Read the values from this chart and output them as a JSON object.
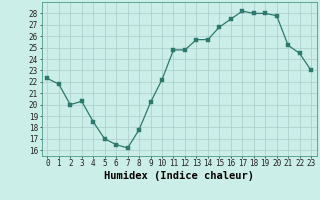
{
  "x": [
    0,
    1,
    2,
    3,
    4,
    5,
    6,
    7,
    8,
    9,
    10,
    11,
    12,
    13,
    14,
    15,
    16,
    17,
    18,
    19,
    20,
    21,
    22,
    23
  ],
  "y": [
    22.3,
    21.8,
    20.0,
    20.3,
    18.5,
    17.0,
    16.5,
    16.2,
    17.8,
    20.2,
    22.2,
    24.8,
    24.8,
    25.7,
    25.7,
    26.8,
    27.5,
    28.2,
    28.0,
    28.0,
    27.8,
    25.2,
    24.5,
    23.0
  ],
  "xlabel": "Humidex (Indice chaleur)",
  "ylim": [
    15.5,
    29.0
  ],
  "xlim": [
    -0.5,
    23.5
  ],
  "yticks": [
    16,
    17,
    18,
    19,
    20,
    21,
    22,
    23,
    24,
    25,
    26,
    27,
    28
  ],
  "xticks": [
    0,
    1,
    2,
    3,
    4,
    5,
    6,
    7,
    8,
    9,
    10,
    11,
    12,
    13,
    14,
    15,
    16,
    17,
    18,
    19,
    20,
    21,
    22,
    23
  ],
  "line_color": "#2d7a6c",
  "bg_color": "#cceee8",
  "grid_color": "#aacccc",
  "tick_label_fontsize": 5.5,
  "xlabel_fontsize": 7.5,
  "marker_size": 2.2,
  "linewidth": 0.9
}
